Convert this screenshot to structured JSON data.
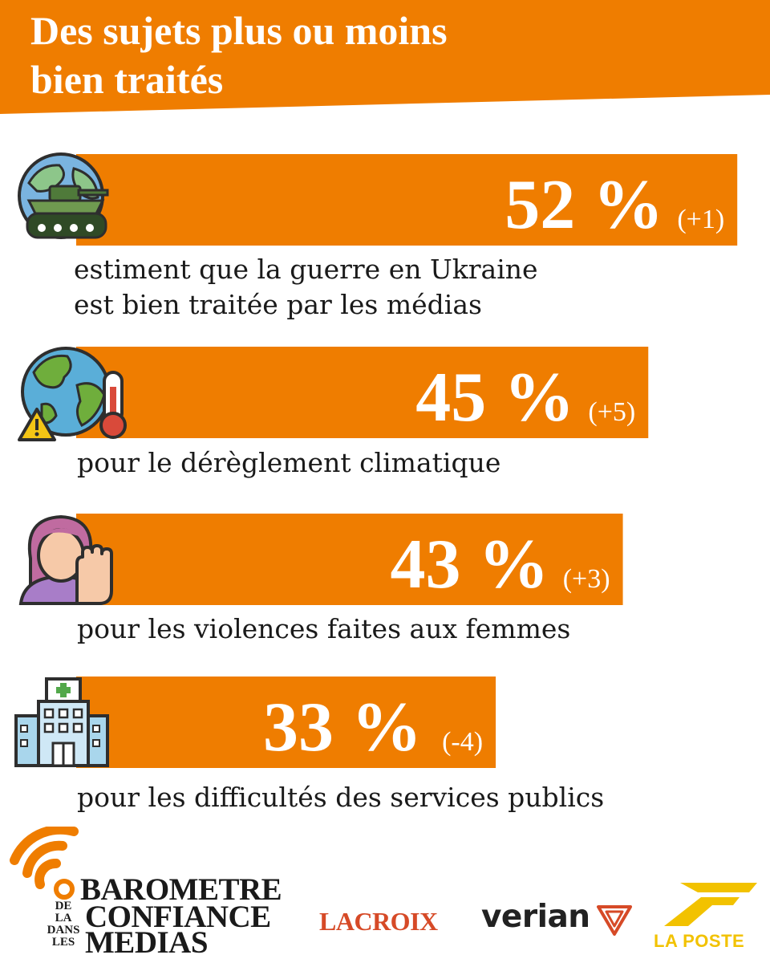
{
  "header": {
    "title": "Des sujets plus ou moins\nbien traités"
  },
  "colors": {
    "accent": "#ef7d00",
    "text": "#1a1a1a",
    "lacroix_red": "#d64a27",
    "laposte_yellow": "#f2c200"
  },
  "chart_data": {
    "type": "bar",
    "orientation": "horizontal",
    "title": "Des sujets plus ou moins bien traités",
    "xlim": [
      0,
      100
    ],
    "categories": [
      "estiment que la guerre en Ukraine est bien traitée par les médias",
      "pour le dérèglement climatique",
      "pour les violences faites aux femmes",
      "pour les difficultés des services publics"
    ],
    "values": [
      52,
      45,
      43,
      33
    ],
    "value_labels": [
      "52 %",
      "45 %",
      "43 %",
      "33 %"
    ],
    "changes": [
      "(+1)",
      "(+5)",
      "(+3)",
      "(-4)"
    ],
    "grid": false,
    "legend": "none"
  },
  "rows": [
    {
      "caption": "estiment que la guerre en Ukraine\nest bien traitée par les médias",
      "icon": "globe-tank-icon"
    },
    {
      "caption": "pour le dérèglement climatique",
      "icon": "earth-thermometer-icon"
    },
    {
      "caption": "pour les violences faites aux femmes",
      "icon": "woman-stop-hand-icon"
    },
    {
      "caption": "pour les difficultés des services publics",
      "icon": "hospital-building-icon"
    }
  ],
  "footer": {
    "barometre": {
      "small": "DE\nLA\nDANS\nLES",
      "line1": "BAROMETRE",
      "line2": "CONFIANCE",
      "line3": "MEDIAS"
    },
    "lacroix": "LACROIX",
    "verian": "verian",
    "laposte": "LA POSTE"
  }
}
